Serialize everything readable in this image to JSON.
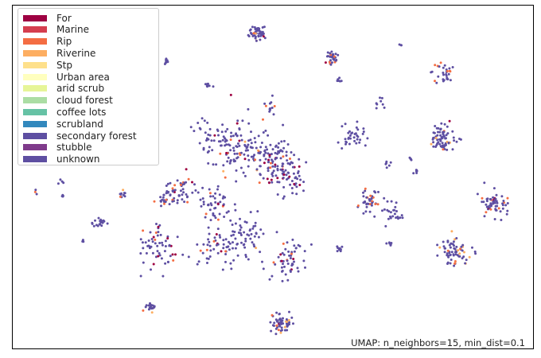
{
  "chart_data": {
    "type": "scatter",
    "title": "",
    "xlabel": "",
    "ylabel": "",
    "grid": false,
    "axes_ticks": false,
    "legend_placement": "top-left",
    "annotation": "UMAP: n_neighbors=15, min_dist=0.1",
    "legend": [
      {
        "label": "For",
        "color": "#9e0142"
      },
      {
        "label": "Marine",
        "color": "#d53e4f"
      },
      {
        "label": "Rip",
        "color": "#f46d43"
      },
      {
        "label": "Riverine",
        "color": "#fdae61"
      },
      {
        "label": "Stp",
        "color": "#fee08b"
      },
      {
        "label": "Urban area",
        "color": "#ffffbf"
      },
      {
        "label": "arid scrub",
        "color": "#e6f598"
      },
      {
        "label": "cloud forest",
        "color": "#abdda4"
      },
      {
        "label": "coffee lots",
        "color": "#66c2a5"
      },
      {
        "label": "scrubland",
        "color": "#3288bd"
      },
      {
        "label": "secondary forest",
        "color": "#5e4fa2"
      },
      {
        "label": "stubble",
        "color": "#7f3b8b"
      },
      {
        "label": "unknown",
        "color": "#5e4fa2"
      }
    ],
    "xlim": [
      0,
      100
    ],
    "ylim": [
      0,
      100
    ],
    "clusters": [
      {
        "x": 47.0,
        "y": 92.0,
        "r": 1.4,
        "n": 45,
        "category": "unknown",
        "accent": [
          "For",
          "Rip",
          "Riverine"
        ]
      },
      {
        "x": 61.5,
        "y": 84.0,
        "r": 1.2,
        "n": 30,
        "category": "unknown",
        "accent": [
          "For",
          "Rip"
        ]
      },
      {
        "x": 83.0,
        "y": 80.5,
        "r": 1.8,
        "n": 30,
        "category": "unknown",
        "accent": [
          "Rip"
        ]
      },
      {
        "x": 29.5,
        "y": 83.5,
        "r": 0.5,
        "n": 8,
        "category": "unknown",
        "accent": []
      },
      {
        "x": 37.5,
        "y": 77.0,
        "r": 0.6,
        "n": 8,
        "category": "unknown",
        "accent": [
          "For"
        ]
      },
      {
        "x": 62.5,
        "y": 78.5,
        "r": 0.6,
        "n": 6,
        "category": "unknown",
        "accent": []
      },
      {
        "x": 70.5,
        "y": 71.0,
        "r": 1.2,
        "n": 8,
        "category": "unknown",
        "accent": []
      },
      {
        "x": 49.5,
        "y": 70.5,
        "r": 1.2,
        "n": 12,
        "category": "unknown",
        "accent": [
          "Rip"
        ]
      },
      {
        "x": 36.5,
        "y": 64.0,
        "r": 1.8,
        "n": 12,
        "category": "unknown",
        "accent": []
      },
      {
        "x": 42.5,
        "y": 58.5,
        "r": 4.5,
        "n": 120,
        "category": "unknown",
        "accent": [
          "For",
          "Rip",
          "Riverine"
        ]
      },
      {
        "x": 49.5,
        "y": 55.5,
        "r": 3.5,
        "n": 90,
        "category": "unknown",
        "accent": [
          "For",
          "Rip"
        ]
      },
      {
        "x": 53.0,
        "y": 50.0,
        "r": 3.0,
        "n": 60,
        "category": "unknown",
        "accent": [
          "For"
        ]
      },
      {
        "x": 65.5,
        "y": 61.5,
        "r": 2.2,
        "n": 35,
        "category": "unknown",
        "accent": []
      },
      {
        "x": 82.5,
        "y": 61.5,
        "r": 2.2,
        "n": 70,
        "category": "unknown",
        "accent": [
          "For",
          "Rip",
          "Riverine"
        ]
      },
      {
        "x": 72.0,
        "y": 53.5,
        "r": 0.6,
        "n": 6,
        "category": "unknown",
        "accent": []
      },
      {
        "x": 77.5,
        "y": 51.5,
        "r": 0.5,
        "n": 6,
        "category": "unknown",
        "accent": []
      },
      {
        "x": 33.0,
        "y": 46.0,
        "r": 2.0,
        "n": 35,
        "category": "unknown",
        "accent": [
          "For",
          "Rip"
        ]
      },
      {
        "x": 29.5,
        "y": 44.0,
        "r": 2.0,
        "n": 30,
        "category": "unknown",
        "accent": [
          "Rip"
        ]
      },
      {
        "x": 21.0,
        "y": 45.0,
        "r": 0.7,
        "n": 10,
        "category": "unknown",
        "accent": [
          "Rip",
          "Riverine"
        ]
      },
      {
        "x": 9.5,
        "y": 44.5,
        "r": 0.3,
        "n": 4,
        "category": "unknown",
        "accent": [
          "Rip"
        ]
      },
      {
        "x": 39.0,
        "y": 42.5,
        "r": 2.5,
        "n": 45,
        "category": "unknown",
        "accent": [
          "For",
          "Rip"
        ]
      },
      {
        "x": 68.5,
        "y": 42.5,
        "r": 2.0,
        "n": 40,
        "category": "unknown",
        "accent": [
          "Rip"
        ]
      },
      {
        "x": 73.0,
        "y": 40.0,
        "r": 2.0,
        "n": 25,
        "category": "unknown",
        "accent": []
      },
      {
        "x": 92.5,
        "y": 42.0,
        "r": 2.0,
        "n": 60,
        "category": "unknown",
        "accent": [
          "For",
          "Rip"
        ]
      },
      {
        "x": 16.5,
        "y": 36.5,
        "r": 1.2,
        "n": 18,
        "category": "unknown",
        "accent": []
      },
      {
        "x": 13.5,
        "y": 31.5,
        "r": 0.3,
        "n": 3,
        "category": "unknown",
        "accent": []
      },
      {
        "x": 27.5,
        "y": 30.0,
        "r": 3.5,
        "n": 60,
        "category": "unknown",
        "accent": [
          "For",
          "Rip"
        ]
      },
      {
        "x": 40.0,
        "y": 30.0,
        "r": 3.5,
        "n": 60,
        "category": "unknown",
        "accent": [
          "For",
          "Rip"
        ]
      },
      {
        "x": 45.0,
        "y": 33.0,
        "r": 3.0,
        "n": 50,
        "category": "unknown",
        "accent": [
          "For",
          "Rip",
          "Riverine"
        ]
      },
      {
        "x": 53.0,
        "y": 27.0,
        "r": 3.2,
        "n": 55,
        "category": "unknown",
        "accent": [
          "For",
          "Rip"
        ]
      },
      {
        "x": 63.0,
        "y": 29.0,
        "r": 0.5,
        "n": 8,
        "category": "unknown",
        "accent": []
      },
      {
        "x": 72.5,
        "y": 30.5,
        "r": 0.5,
        "n": 6,
        "category": "unknown",
        "accent": []
      },
      {
        "x": 85.0,
        "y": 27.5,
        "r": 2.5,
        "n": 70,
        "category": "unknown",
        "accent": [
          "Rip",
          "Riverine"
        ]
      },
      {
        "x": 26.5,
        "y": 12.0,
        "r": 0.9,
        "n": 18,
        "category": "unknown",
        "accent": [
          "Rip",
          "Riverine"
        ]
      },
      {
        "x": 51.5,
        "y": 7.0,
        "r": 1.8,
        "n": 60,
        "category": "unknown",
        "accent": [
          "For",
          "Rip",
          "Riverine"
        ]
      },
      {
        "x": 74.5,
        "y": 88.5,
        "r": 0.3,
        "n": 3,
        "category": "unknown",
        "accent": []
      },
      {
        "x": 9.5,
        "y": 48.5,
        "r": 0.4,
        "n": 4,
        "category": "unknown",
        "accent": []
      },
      {
        "x": 4.5,
        "y": 45.5,
        "r": 0.3,
        "n": 3,
        "category": "unknown",
        "accent": [
          "Rip"
        ]
      },
      {
        "x": 76.5,
        "y": 55.0,
        "r": 0.4,
        "n": 4,
        "category": "unknown",
        "accent": []
      }
    ],
    "faint_points": [
      {
        "x": 22.0,
        "y": 77.0
      },
      {
        "x": 27.5,
        "y": 70.5
      },
      {
        "x": 27.5,
        "y": 60.5
      }
    ]
  }
}
